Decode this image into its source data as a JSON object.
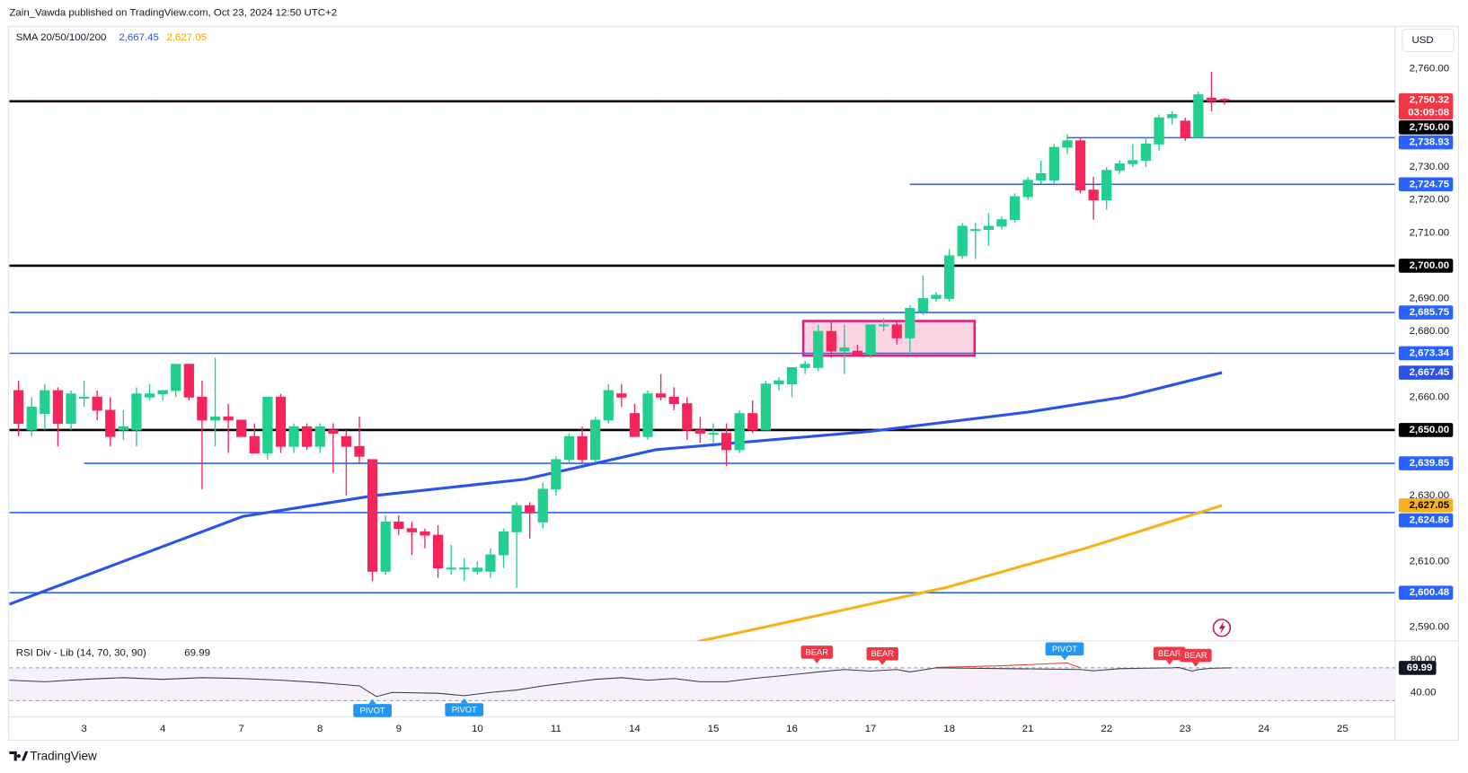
{
  "header": {
    "byline": "Zain_Vawda published on TradingView.com, Oct 23, 2024 12:50 UTC+2",
    "currency": "USD",
    "brand": "TradingView"
  },
  "chart_data": [
    {
      "type": "candlestick",
      "legend_title": "SMA 20/50/100/200",
      "up_color": "#22cf8f",
      "down_color": "#f5245b",
      "xlim": [
        -0.7,
        105
      ],
      "ylim": [
        2585.8,
        2780.8
      ],
      "xticks": [
        {
          "value": 5,
          "label": "3"
        },
        {
          "value": 11,
          "label": "4"
        },
        {
          "value": 17,
          "label": "7"
        },
        {
          "value": 23,
          "label": "8"
        },
        {
          "value": 29,
          "label": "9"
        },
        {
          "value": 35,
          "label": "10"
        },
        {
          "value": 41,
          "label": "11"
        },
        {
          "value": 47,
          "label": "14"
        },
        {
          "value": 53,
          "label": "15"
        },
        {
          "value": 59,
          "label": "16"
        },
        {
          "value": 65,
          "label": "17"
        },
        {
          "value": 71,
          "label": "18"
        },
        {
          "value": 77,
          "label": "21"
        },
        {
          "value": 83,
          "label": "22"
        },
        {
          "value": 89,
          "label": "23"
        },
        {
          "value": 95,
          "label": "24"
        },
        {
          "value": 101,
          "label": "25"
        }
      ],
      "yticks": [
        {
          "value": 2760,
          "label": "2,760.00"
        },
        {
          "value": 2730,
          "label": "2,730.00"
        },
        {
          "value": 2720,
          "label": "2,720.00"
        },
        {
          "value": 2710,
          "label": "2,710.00"
        },
        {
          "value": 2690,
          "label": "2,690.00"
        },
        {
          "value": 2680,
          "label": "2,680.00"
        },
        {
          "value": 2660,
          "label": "2,660.00"
        },
        {
          "value": 2630,
          "label": "2,630.00"
        },
        {
          "value": 2610,
          "label": "2,610.00"
        },
        {
          "value": 2590,
          "label": "2,590.00"
        }
      ],
      "open": [
        2662,
        2650,
        2655,
        2662,
        2652,
        2660,
        2660,
        2656,
        2650,
        2650,
        2660,
        2661,
        2662,
        2670,
        2660,
        2653,
        2654,
        2653,
        2648,
        2643,
        2660,
        2645,
        2651,
        2645,
        2650,
        2648,
        2645,
        2641,
        2607,
        2622,
        2620,
        2619,
        2618,
        2608,
        2608,
        2607,
        2607,
        2612,
        2619,
        2627,
        2622,
        2632,
        2641,
        2648,
        2641,
        2653,
        2661,
        2655,
        2648,
        2661,
        2660,
        2658,
        2650,
        2649,
        2649,
        2644,
        2655,
        2650,
        2664,
        2664,
        2669,
        2669,
        2680,
        2674,
        2674,
        2673,
        2682,
        2682,
        2678,
        2686,
        2690,
        2690,
        2703,
        2711,
        2711,
        2712,
        2714,
        2721,
        2726,
        2726,
        2736,
        2738,
        2723,
        2720,
        2729,
        2731,
        2732,
        2737,
        2745,
        2744,
        2739,
        2751,
        2750.6
      ],
      "high": [
        2665,
        2660,
        2664,
        2663,
        2662,
        2665,
        2662,
        2660,
        2656,
        2663,
        2664,
        2662,
        2670,
        2670,
        2665,
        2672,
        2658,
        2653,
        2652,
        2660,
        2661,
        2652,
        2652,
        2652,
        2652,
        2650,
        2654,
        2641,
        2624,
        2624,
        2622,
        2620,
        2621,
        2615,
        2611,
        2610,
        2614,
        2620,
        2628,
        2628,
        2634,
        2642,
        2649,
        2651,
        2654,
        2664,
        2664,
        2658,
        2662,
        2667,
        2663,
        2660,
        2654,
        2652,
        2652,
        2656,
        2659,
        2665,
        2666,
        2669,
        2671,
        2682,
        2683,
        2682,
        2676,
        2682,
        2684,
        2683,
        2688,
        2697,
        2692,
        2705,
        2713,
        2713,
        2716,
        2715,
        2722,
        2727,
        2732,
        2737,
        2740,
        2739,
        2727,
        2730,
        2732,
        2737,
        2739,
        2746,
        2747,
        2745,
        2753,
        2759,
        2751
      ],
      "low": [
        2648,
        2648,
        2650,
        2645,
        2650,
        2657,
        2653,
        2645,
        2647,
        2645,
        2659,
        2659,
        2660,
        2659,
        2632,
        2645,
        2643,
        2648,
        2643,
        2641,
        2643,
        2643,
        2644,
        2643,
        2637,
        2630,
        2640,
        2604,
        2606,
        2618,
        2612,
        2614,
        2605,
        2606,
        2604,
        2606,
        2605,
        2608,
        2602,
        2617,
        2620,
        2630,
        2640,
        2640,
        2640,
        2652,
        2657,
        2648,
        2647,
        2659,
        2656,
        2647,
        2646,
        2646,
        2639,
        2643,
        2649,
        2650,
        2662,
        2660,
        2667,
        2668,
        2672,
        2667,
        2673,
        2672,
        2680,
        2676,
        2673,
        2685,
        2689,
        2689,
        2702,
        2702,
        2706,
        2711,
        2713,
        2720,
        2725,
        2725,
        2734,
        2722,
        2714,
        2717,
        2728,
        2730,
        2730,
        2735,
        2743,
        2738,
        2739,
        2747,
        2749
      ],
      "close": [
        2652,
        2657,
        2662,
        2652,
        2661,
        2660,
        2656,
        2648,
        2651,
        2661,
        2661,
        2662,
        2670,
        2660,
        2653,
        2654,
        2653,
        2648,
        2643,
        2660,
        2645,
        2651,
        2645,
        2651,
        2649,
        2645,
        2642,
        2607,
        2622,
        2620,
        2619,
        2618,
        2608,
        2608,
        2608,
        2608,
        2612,
        2619,
        2627,
        2625,
        2632,
        2641,
        2648,
        2641,
        2653,
        2662,
        2660,
        2648,
        2661,
        2660,
        2658,
        2650,
        2649,
        2649,
        2644,
        2655,
        2650,
        2664,
        2665,
        2669,
        2670,
        2680,
        2674,
        2675,
        2673,
        2682,
        2682,
        2678,
        2687,
        2690,
        2691,
        2703,
        2712,
        2711,
        2712,
        2714,
        2721,
        2726,
        2728,
        2736,
        2738,
        2723,
        2720,
        2729,
        2731,
        2732,
        2737,
        2745,
        2746,
        2739,
        2752,
        2750,
        2750.32
      ],
      "series": [
        {
          "color": "#2a53e8",
          "x": [
            -0.7,
            17.1,
            27.1,
            38.6,
            48.6,
            65,
            77.1,
            84.3,
            91.8
          ],
          "values": [
            2597,
            2623.7,
            2630,
            2635,
            2644,
            2649.6,
            2655.5,
            2660,
            2667.45
          ],
          "value_label": "2,667.45"
        },
        {
          "color": "#f5b21b",
          "x": [
            51.8,
            70.7,
            81.4,
            91.8
          ],
          "values": [
            2585.6,
            2602,
            2614,
            2627.05
          ],
          "value_label": "2,627.05"
        }
      ],
      "levels": [
        {
          "value": 2750,
          "label": "2,750.00",
          "color": "#000000"
        },
        {
          "value": 2738.93,
          "label": "2,738.93",
          "color": "#2962ff",
          "x_start": 80
        },
        {
          "value": 2724.75,
          "label": "2,724.75",
          "color": "#2962ff",
          "x_start": 68
        },
        {
          "value": 2700,
          "label": "2,700.00",
          "color": "#000000"
        },
        {
          "value": 2685.75,
          "label": "2,685.75",
          "color": "#2962ff"
        },
        {
          "value": 2673.34,
          "label": "2,673.34",
          "color": "#2962ff"
        },
        {
          "value": 2650,
          "label": "2,650.00",
          "color": "#000000"
        },
        {
          "value": 2639.85,
          "label": "2,639.85",
          "color": "#2962ff",
          "x_start": 5
        },
        {
          "value": 2624.86,
          "label": "2,624.86",
          "color": "#2962ff"
        },
        {
          "value": 2600.48,
          "label": "2,600.48",
          "color": "#2962ff"
        }
      ],
      "current": {
        "value": 2750.32,
        "label": "2,750.32",
        "countdown": "03:09:08",
        "color": "#f23645"
      }
    },
    {
      "type": "line",
      "title": "RSI Div - Lib (14, 70, 30, 90)",
      "ylim": [
        11.4,
        101.7
      ],
      "yticks": [
        {
          "value": 80,
          "label": "80.00"
        },
        {
          "value": 40,
          "label": "40.00"
        }
      ],
      "bands": [
        30,
        70
      ],
      "series": [
        {
          "color": "#e8463c",
          "x": [
            70,
            75,
            80,
            81
          ],
          "values": [
            70.5,
            72.5,
            76,
            70
          ]
        },
        {
          "color": "#3c3f47",
          "x": [
            -0.7,
            2,
            5,
            8,
            11,
            14,
            17,
            20,
            23,
            26,
            27.3,
            28.5,
            32,
            34,
            36,
            38,
            40,
            42,
            44,
            46,
            48,
            50,
            52,
            54,
            56,
            58,
            61,
            63,
            65,
            67,
            68,
            70,
            81,
            82,
            84,
            88,
            88.5,
            89.5,
            90,
            91,
            92.5
          ],
          "values": [
            55,
            53,
            56,
            58,
            56,
            58,
            57,
            55,
            52,
            48,
            35,
            40,
            39,
            36,
            40,
            43,
            48,
            52,
            56,
            58,
            55,
            57,
            53,
            53,
            57,
            60,
            65,
            68,
            66,
            68,
            65,
            70,
            68,
            66.5,
            69,
            70,
            70.5,
            66,
            68,
            69.5,
            69.99
          ],
          "value_label": "69.99"
        }
      ],
      "signals": [
        {
          "label": "BEAR",
          "x": 60.9,
          "value": 72,
          "position": "above",
          "color": "#f23645"
        },
        {
          "label": "BEAR",
          "x": 65.9,
          "value": 70,
          "position": "above",
          "color": "#f23645"
        },
        {
          "label": "PIVOT",
          "x": 79.8,
          "value": 76,
          "position": "above",
          "color": "#2196f3"
        },
        {
          "label": "BEAR",
          "x": 87.8,
          "value": 70.5,
          "position": "above",
          "color": "#f23645"
        },
        {
          "label": "BEAR",
          "x": 89.8,
          "value": 68,
          "position": "above",
          "color": "#f23645"
        },
        {
          "label": "PIVOT",
          "x": 27,
          "value": 35,
          "position": "below",
          "color": "#2196f3"
        },
        {
          "label": "PIVOT",
          "x": 34,
          "value": 36,
          "position": "below",
          "color": "#2196f3"
        }
      ]
    }
  ]
}
